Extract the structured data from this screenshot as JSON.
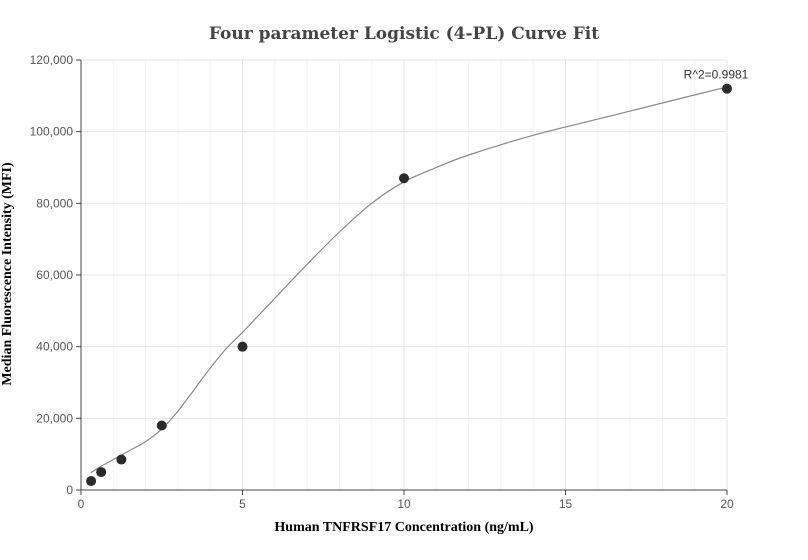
{
  "chart_data": {
    "type": "scatter",
    "title": "Four parameter Logistic (4-PL) Curve Fit",
    "xlabel": "Human TNFRSF17 Concentration (ng/mL)",
    "ylabel": "Median Fluorescence Intensity (MFI)",
    "xlim": [
      0,
      20
    ],
    "ylim": [
      0,
      120000
    ],
    "xticks": [
      0,
      5,
      10,
      15,
      20
    ],
    "yticks": [
      0,
      20000,
      40000,
      60000,
      80000,
      100000,
      120000
    ],
    "xtick_labels": [
      "0",
      "5",
      "10",
      "15",
      "20"
    ],
    "ytick_labels": [
      "0",
      "20,000",
      "40,000",
      "60,000",
      "80,000",
      "100,000",
      "120,000"
    ],
    "grid": true,
    "points": {
      "x": [
        0.3125,
        0.625,
        1.25,
        2.5,
        5,
        10,
        20
      ],
      "y": [
        2500,
        5000,
        8500,
        18000,
        40000,
        87000,
        112000
      ]
    },
    "fit_curve": {
      "x": [
        0.3,
        0.6,
        1,
        1.5,
        2,
        2.5,
        3,
        3.5,
        4,
        4.5,
        5,
        6,
        7,
        8,
        9,
        10,
        11,
        12,
        14,
        16,
        18,
        20
      ],
      "y": [
        4800,
        6500,
        8500,
        11000,
        13500,
        17000,
        22000,
        28000,
        34000,
        39500,
        44000,
        53500,
        63000,
        72000,
        80000,
        86000,
        90000,
        93500,
        99000,
        103500,
        108000,
        112500
      ]
    },
    "annotation": "R^2=0.9981",
    "colors": {
      "points": "#2b2b2b",
      "fit": "#888888"
    }
  }
}
